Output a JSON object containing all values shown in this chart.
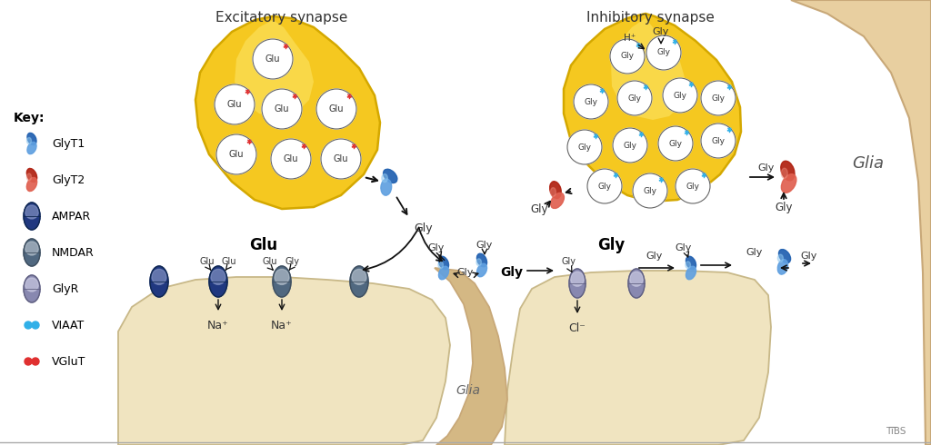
{
  "title_excitatory": "Excitatory synapse",
  "title_inhibitory": "Inhibitory synapse",
  "key_title": "Key:",
  "label_glu": "Glu",
  "label_gly": "Gly",
  "label_glia_top": "Glia",
  "label_glia_bottom": "Glia",
  "label_na": "Na⁺",
  "label_cl": "Cl⁻",
  "label_bold_glu": "Glu",
  "label_bold_gly": "Gly",
  "label_hp": "H⁺",
  "label_tibs": "TiBS",
  "bg_color": "#ffffff",
  "synapse_yellow": "#f5c820",
  "synapse_yellow_edge": "#d4a800",
  "synapse_grad_top": "#fde870",
  "glia_beige": "#e8cfa0",
  "glia_beige_edge": "#c8a878",
  "post_cream": "#f0e4c0",
  "post_cream_edge": "#c8b888",
  "glia_bulge": "#d4b884",
  "vesicle_fill": "#ffffff",
  "vesicle_edge": "#666666",
  "glyt1_dark": "#2060b0",
  "glyt1_light": "#60a0e0",
  "glyt2_dark": "#b02010",
  "glyt2_light": "#e06050",
  "ampar_dark": "#203880",
  "ampar_mid": "#3060b0",
  "ampar_light": "#8090c0",
  "nmdar_dark": "#506880",
  "nmdar_mid": "#8090a8",
  "nmdar_light": "#b0bcc8",
  "glyr_dark": "#8888b0",
  "glyr_mid": "#a8a8c8",
  "glyr_light": "#c8c8e0",
  "viaat_cyan": "#30b0e8",
  "vglut_red": "#e03030",
  "text_dark": "#333333",
  "text_black": "#000000",
  "arrow_black": "#111111"
}
